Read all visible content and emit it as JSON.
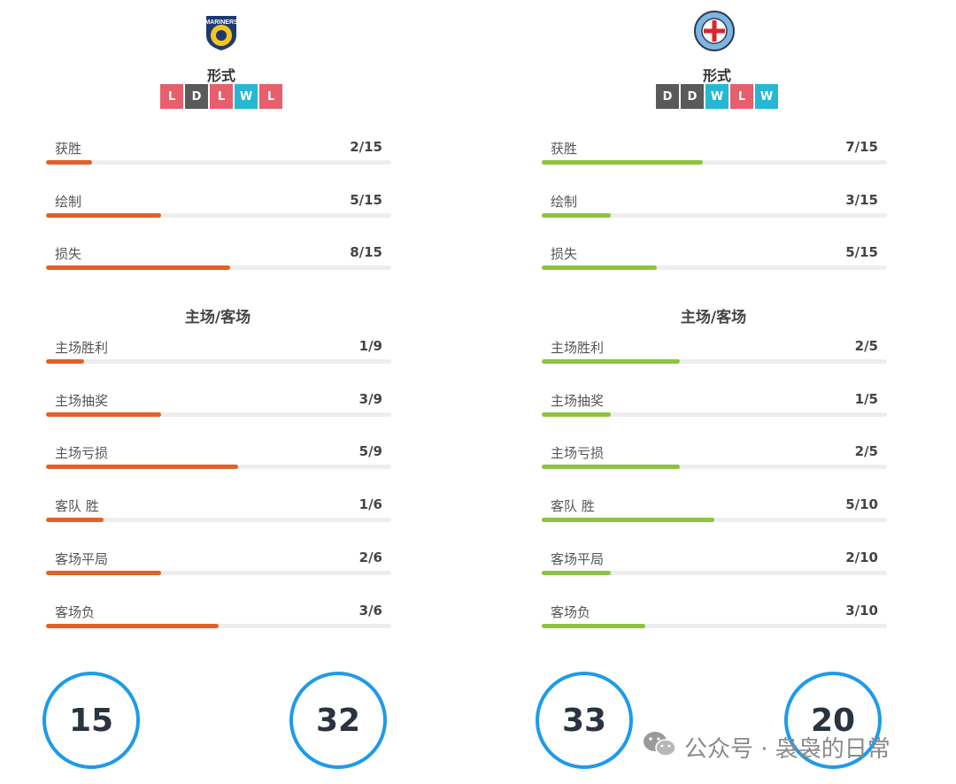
{
  "colors": {
    "loss_badge": "#e55f6c",
    "draw_badge": "#5a5a5a",
    "win_badge": "#26b8d2",
    "left_bar": "#e0622a",
    "right_bar": "#8cc43f",
    "circle_border": "#1e9be9"
  },
  "teams": [
    {
      "side": "left",
      "logo_icon": "mariners-crest-icon",
      "logo_text": "MARINERS",
      "form_title": "形式",
      "form": [
        "L",
        "D",
        "L",
        "W",
        "L"
      ],
      "stats": [
        {
          "label": "获胜",
          "value": "2/15",
          "fraction": 0.133
        },
        {
          "label": "绘制",
          "value": "5/15",
          "fraction": 0.333
        },
        {
          "label": "损失",
          "value": "8/15",
          "fraction": 0.533
        }
      ],
      "section_title": "主场/客场",
      "home_away": [
        {
          "label": "主场胜利",
          "value": "1/9",
          "fraction": 0.111
        },
        {
          "label": "主场抽奖",
          "value": "3/9",
          "fraction": 0.333
        },
        {
          "label": "主场亏损",
          "value": "5/9",
          "fraction": 0.556
        },
        {
          "label": "客队 胜",
          "value": "1/6",
          "fraction": 0.167
        },
        {
          "label": "客场平局",
          "value": "2/6",
          "fraction": 0.333
        },
        {
          "label": "客场负",
          "value": "3/6",
          "fraction": 0.5
        }
      ],
      "circles": [
        "15",
        "32"
      ]
    },
    {
      "side": "right",
      "logo_icon": "melbourne-city-crest-icon",
      "form_title": "形式",
      "form": [
        "D",
        "D",
        "W",
        "L",
        "W"
      ],
      "stats": [
        {
          "label": "获胜",
          "value": "7/15",
          "fraction": 0.467
        },
        {
          "label": "绘制",
          "value": "3/15",
          "fraction": 0.2
        },
        {
          "label": "损失",
          "value": "5/15",
          "fraction": 0.333
        }
      ],
      "section_title": "主场/客场",
      "home_away": [
        {
          "label": "主场胜利",
          "value": "2/5",
          "fraction": 0.4
        },
        {
          "label": "主场抽奖",
          "value": "1/5",
          "fraction": 0.2
        },
        {
          "label": "主场亏损",
          "value": "2/5",
          "fraction": 0.4
        },
        {
          "label": "客队 胜",
          "value": "5/10",
          "fraction": 0.5
        },
        {
          "label": "客场平局",
          "value": "2/10",
          "fraction": 0.2
        },
        {
          "label": "客场负",
          "value": "3/10",
          "fraction": 0.3
        }
      ],
      "circles": [
        "33",
        "20"
      ]
    }
  ],
  "watermark": {
    "icon": "wechat-icon",
    "text": "公众号 · 袅袅的日常"
  }
}
